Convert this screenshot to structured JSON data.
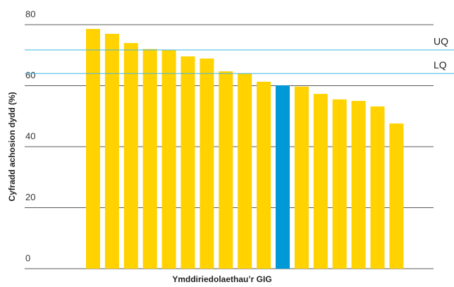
{
  "chart_data": {
    "type": "bar",
    "ylabel": "Cyfradd achosion dydd (%)",
    "xlabel": "Ymddiriedolaethau’r GIG",
    "categories": [
      null,
      null,
      null,
      null,
      null,
      null,
      null,
      null,
      null,
      null,
      null,
      null,
      null,
      null,
      null,
      null,
      null
    ],
    "values": [
      78.6,
      77,
      74,
      72,
      71.7,
      69.6,
      68.9,
      64.7,
      64,
      61.3,
      60.1,
      59.7,
      57.3,
      55.5,
      55,
      53.2,
      47.6
    ],
    "colors": [
      "#ffd200",
      "#ffd200",
      "#ffd200",
      "#ffd200",
      "#ffd200",
      "#ffd200",
      "#ffd200",
      "#ffd200",
      "#ffd200",
      "#ffd200",
      "#0099d8",
      "#ffd200",
      "#ffd200",
      "#ffd200",
      "#ffd200",
      "#ffd200",
      "#ffd200"
    ],
    "ylim": [
      0,
      80
    ],
    "yticks": [
      0,
      20,
      40,
      60,
      80
    ],
    "grid": true,
    "reference_lines": [
      {
        "label": "UQ",
        "value": 71.7,
        "color": "#3cb8e8"
      },
      {
        "label": "LQ",
        "value": 64,
        "color": "#3cb8e8"
      }
    ]
  }
}
